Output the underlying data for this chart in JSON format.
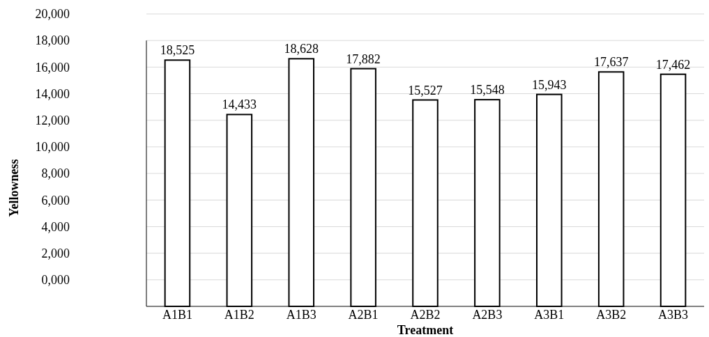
{
  "chart_data": {
    "type": "bar",
    "xlabel": "Treatment",
    "ylabel": "Yellowness",
    "categories": [
      "A1B1",
      "A1B2",
      "A1B3",
      "A2B1",
      "A2B2",
      "A2B3",
      "A3B1",
      "A3B2",
      "A3B3"
    ],
    "values": [
      18525,
      14433,
      18628,
      17882,
      15527,
      15548,
      15943,
      17637,
      17462
    ],
    "base": [
      -2000,
      -2000,
      -2000,
      -2000,
      -2000,
      -2000,
      -2000,
      -2000,
      -2000
    ],
    "value_labels": [
      "18,525",
      "14,433",
      "18,628",
      "17,882",
      "15,527",
      "15,548",
      "15,943",
      "17,637",
      "17,462"
    ],
    "color": "#ffffff",
    "grid": "y",
    "ylim": [
      -2000,
      20000
    ],
    "yticks": [
      {
        "value": 0,
        "label": "0,000"
      },
      {
        "value": 2000,
        "label": "2,000"
      },
      {
        "value": 4000,
        "label": "4,000"
      },
      {
        "value": 6000,
        "label": "6,000"
      },
      {
        "value": 8000,
        "label": "8,000"
      },
      {
        "value": 10000,
        "label": "10,000"
      },
      {
        "value": 12000,
        "label": "12,000"
      },
      {
        "value": 14000,
        "label": "14,000"
      },
      {
        "value": 16000,
        "label": "16,000"
      },
      {
        "value": 18000,
        "label": "18,000"
      },
      {
        "value": 20000,
        "label": "20,000"
      }
    ]
  }
}
